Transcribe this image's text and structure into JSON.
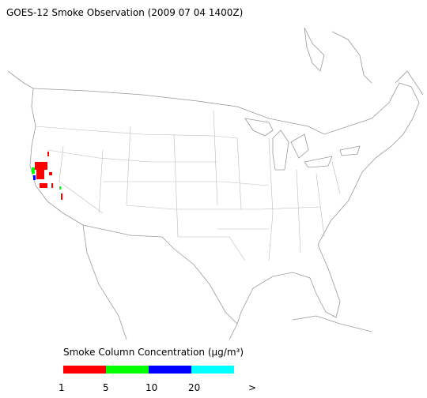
{
  "title": "GOES-12 Smoke Observation (2009 07 04  1400Z)",
  "legend": {
    "title": "Smoke Column Concentration (μg/m³)",
    "colors": [
      "#ff0000",
      "#00ff00",
      "#0000ff",
      "#00ffff"
    ],
    "labels": [
      "1",
      "5",
      "10",
      "20",
      ">"
    ]
  }
}
